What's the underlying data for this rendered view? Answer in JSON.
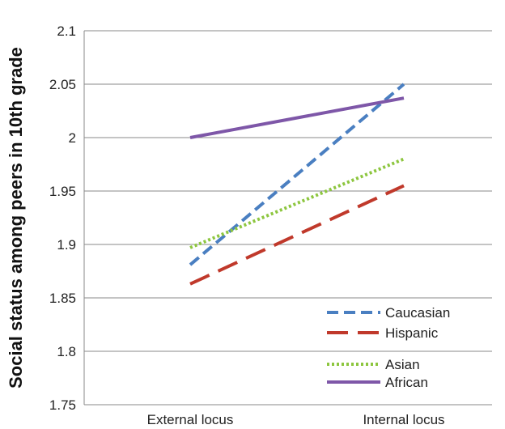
{
  "chart_data": {
    "type": "line",
    "categories": [
      "External locus",
      "Internal locus"
    ],
    "ylabel": "Social status among peers in 10th grade",
    "ylim": [
      1.75,
      2.1
    ],
    "yticks": [
      "1.75",
      "1.8",
      "1.85",
      "1.9",
      "1.95",
      "2",
      "2.05",
      "2.1"
    ],
    "grid": true,
    "legend_position": "bottom-right",
    "series": [
      {
        "name": "Caucasian",
        "values": [
          1.881,
          2.05
        ],
        "color": "#4a7fc1",
        "style": "dashed"
      },
      {
        "name": "Hispanic",
        "values": [
          1.863,
          1.955
        ],
        "color": "#c0392b",
        "style": "long-dashed"
      },
      {
        "name": "Asian",
        "values": [
          1.897,
          1.98
        ],
        "color": "#8dc63f",
        "style": "dotted"
      },
      {
        "name": "African",
        "values": [
          2.0,
          2.037
        ],
        "color": "#7e57a8",
        "style": "solid"
      }
    ]
  }
}
